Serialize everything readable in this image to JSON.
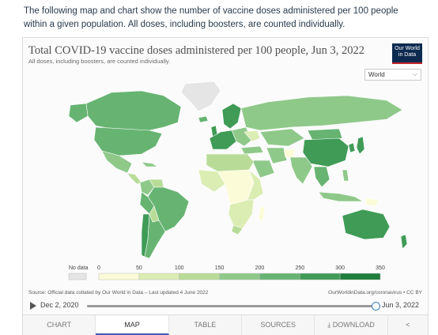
{
  "intro": "The following map and chart show the number of vaccine doses administered per 100 people within a given population. All doses, including boosters, are counted individually.",
  "chart": {
    "title": "Total COVID-19 vaccine doses administered per 100 people, Jun 3, 2022",
    "subtitle": "All doses, including boosters, are counted individually.",
    "logo": "Our World in Data",
    "region_selected": "World"
  },
  "legend": {
    "no_data_label": "No data",
    "colors": [
      "#fbfbd8",
      "#dcedb4",
      "#b8dc97",
      "#8fc98a",
      "#67b472",
      "#3f9b56",
      "#1f7d3c"
    ],
    "no_data_color": "#e5e5e5",
    "ticks": [
      "0",
      "50",
      "100",
      "150",
      "200",
      "250",
      "300",
      "350"
    ]
  },
  "footer": {
    "source": "Source: Official data collated by Our World in Data – Last updated 4 June 2022",
    "credit": "OurWorldinData.org/coronavirus • CC BY"
  },
  "timeline": {
    "start": "Dec 2, 2020",
    "end": "Jun 3, 2022",
    "position_fraction": 1.0
  },
  "tabs": [
    {
      "label": "CHART"
    },
    {
      "label": "MAP",
      "active": true
    },
    {
      "label": "TABLE"
    },
    {
      "label": "SOURCES"
    },
    {
      "label": "⤓ DOWNLOAD"
    },
    {
      "label": "share"
    }
  ],
  "colors": {
    "accent": "#3e5fa8",
    "logo_bg": "#0c2a4f",
    "logo_accent": "#c6242b"
  }
}
